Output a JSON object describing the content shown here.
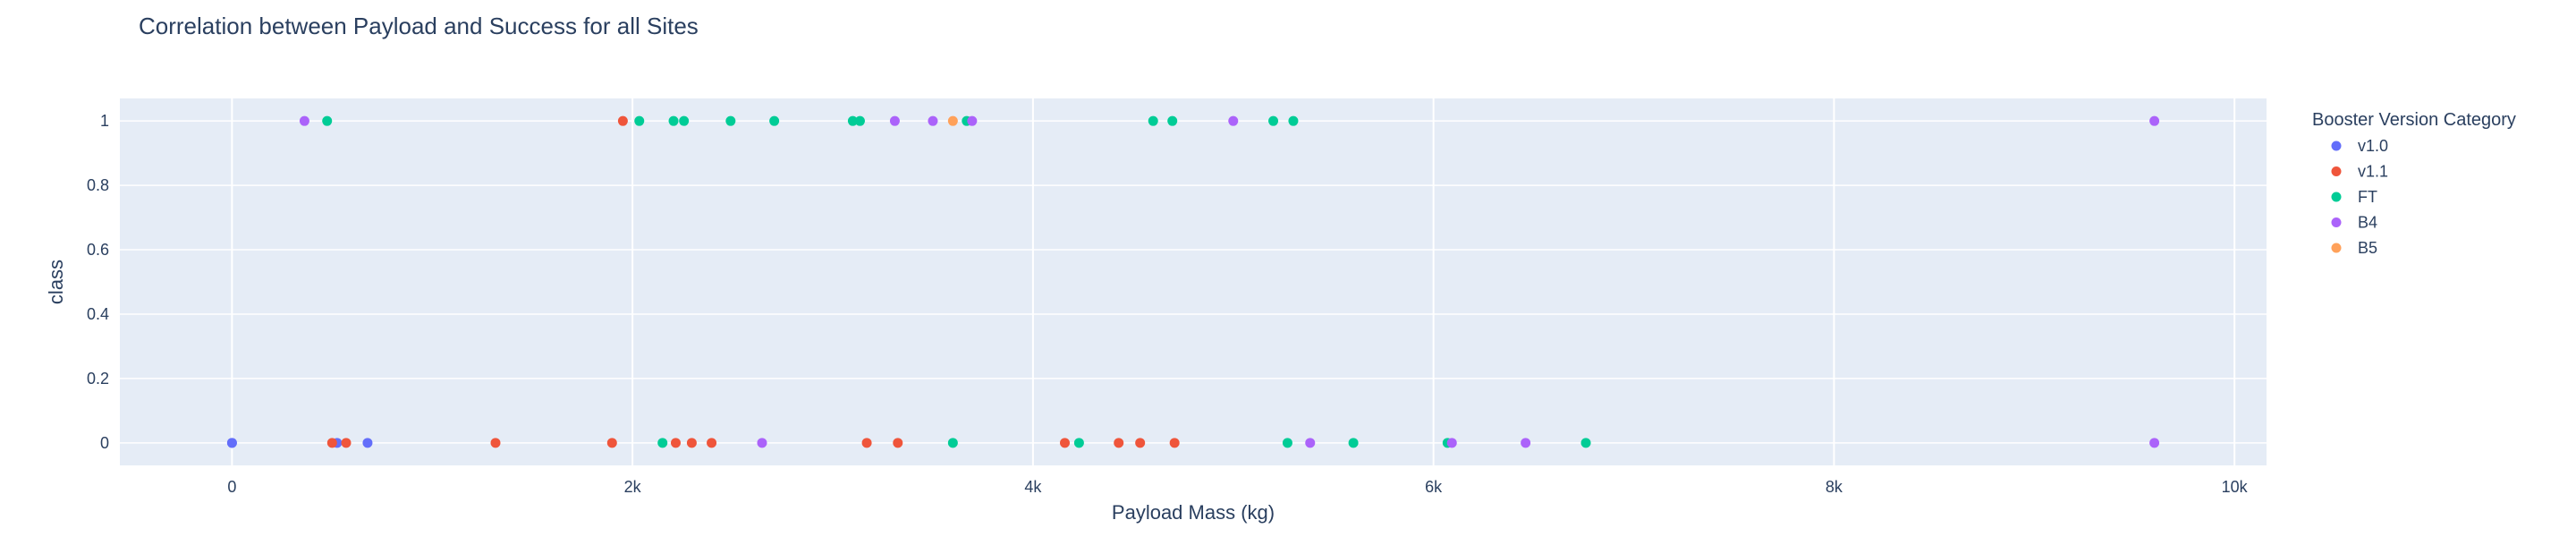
{
  "chart_data": {
    "type": "scatter",
    "title": "Correlation between Payload and Success for all Sites",
    "xlabel": "Payload Mass (kg)",
    "ylabel": "class",
    "xlim": [
      -560,
      10160
    ],
    "ylim": [
      -0.07,
      1.07
    ],
    "x_ticks": [
      0,
      2000,
      4000,
      6000,
      8000,
      10000
    ],
    "x_tick_labels": [
      "0",
      "2k",
      "4k",
      "6k",
      "8k",
      "10k"
    ],
    "y_ticks": [
      0,
      0.2,
      0.4,
      0.6,
      0.8,
      1
    ],
    "y_tick_labels": [
      "0",
      "0.2",
      "0.4",
      "0.6",
      "0.8",
      "1"
    ],
    "grid": true,
    "legend_title": "Booster Version Category",
    "legend_position": "right",
    "series": [
      {
        "name": "v1.0",
        "color": "#636efa",
        "points": [
          [
            0,
            0
          ],
          [
            0,
            0
          ],
          [
            525,
            0
          ],
          [
            677,
            0
          ]
        ]
      },
      {
        "name": "v1.1",
        "color": "#ef553b",
        "points": [
          [
            500,
            0
          ],
          [
            570,
            0
          ],
          [
            1316,
            0
          ],
          [
            1898,
            0
          ],
          [
            1952,
            1
          ],
          [
            2216,
            0
          ],
          [
            2296,
            0
          ],
          [
            2395,
            0
          ],
          [
            3170,
            0
          ],
          [
            3325,
            0
          ],
          [
            4159,
            0
          ],
          [
            4428,
            0
          ],
          [
            4535,
            0
          ],
          [
            4707,
            0
          ]
        ]
      },
      {
        "name": "FT",
        "color": "#00cc96",
        "points": [
          [
            475,
            1
          ],
          [
            2034,
            1
          ],
          [
            2150,
            0
          ],
          [
            2205,
            1
          ],
          [
            2257,
            1
          ],
          [
            2490,
            1
          ],
          [
            2708,
            1
          ],
          [
            3100,
            1
          ],
          [
            3136,
            1
          ],
          [
            3600,
            0
          ],
          [
            3669,
            1
          ],
          [
            4230,
            0
          ],
          [
            4600,
            1
          ],
          [
            4696,
            1
          ],
          [
            5200,
            1
          ],
          [
            5271,
            0
          ],
          [
            5300,
            1
          ],
          [
            5600,
            0
          ],
          [
            6070,
            0
          ],
          [
            6761,
            0
          ]
        ]
      },
      {
        "name": "B4",
        "color": "#ab63fa",
        "points": [
          [
            362,
            1
          ],
          [
            2647,
            0
          ],
          [
            3310,
            1
          ],
          [
            3500,
            1
          ],
          [
            3696,
            1
          ],
          [
            5000,
            1
          ],
          [
            5384,
            0
          ],
          [
            6092,
            0
          ],
          [
            6460,
            0
          ],
          [
            9600,
            1
          ],
          [
            9600,
            0
          ]
        ]
      },
      {
        "name": "B5",
        "color": "#ffa15a",
        "points": [
          [
            3600,
            1
          ]
        ]
      }
    ]
  }
}
